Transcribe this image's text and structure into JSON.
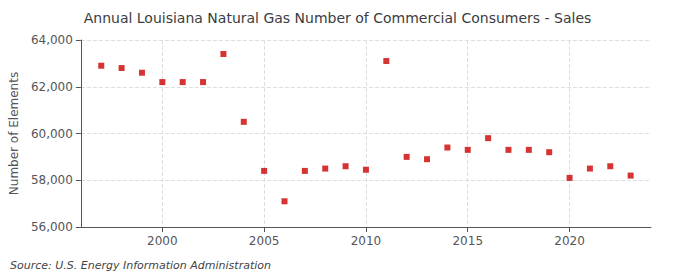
{
  "chart_data": {
    "type": "scatter",
    "title": "Annual Louisiana Natural Gas Number of Commercial Consumers - Sales",
    "ylabel": "Number of Elements",
    "annotation": "Source: U.S. Energy Information Administration",
    "x": [
      1997,
      1998,
      1999,
      2000,
      2001,
      2002,
      2003,
      2004,
      2005,
      2006,
      2007,
      2008,
      2009,
      2010,
      2011,
      2012,
      2013,
      2014,
      2015,
      2016,
      2017,
      2018,
      2019,
      2020,
      2021,
      2022,
      2023
    ],
    "values": [
      62900,
      62800,
      62600,
      62200,
      62200,
      62200,
      63400,
      60500,
      58400,
      57100,
      58400,
      58500,
      58600,
      58450,
      63100,
      59000,
      58900,
      59400,
      59300,
      59800,
      59300,
      59300,
      59200,
      58100,
      58500,
      58600,
      58200
    ],
    "color": "#cc0000",
    "marker": "square",
    "xlim": [
      1996,
      2024
    ],
    "xticks": [
      2000,
      2005,
      2010,
      2015,
      2020
    ],
    "ylim": [
      56000,
      64000
    ],
    "yticks": [
      {
        "value": 56000,
        "label": "56,000"
      },
      {
        "value": 58000,
        "label": "58,000"
      },
      {
        "value": 60000,
        "label": "60,000"
      },
      {
        "value": 62000,
        "label": "62,000"
      },
      {
        "value": 64000,
        "label": "64,000"
      }
    ],
    "grid": true
  }
}
